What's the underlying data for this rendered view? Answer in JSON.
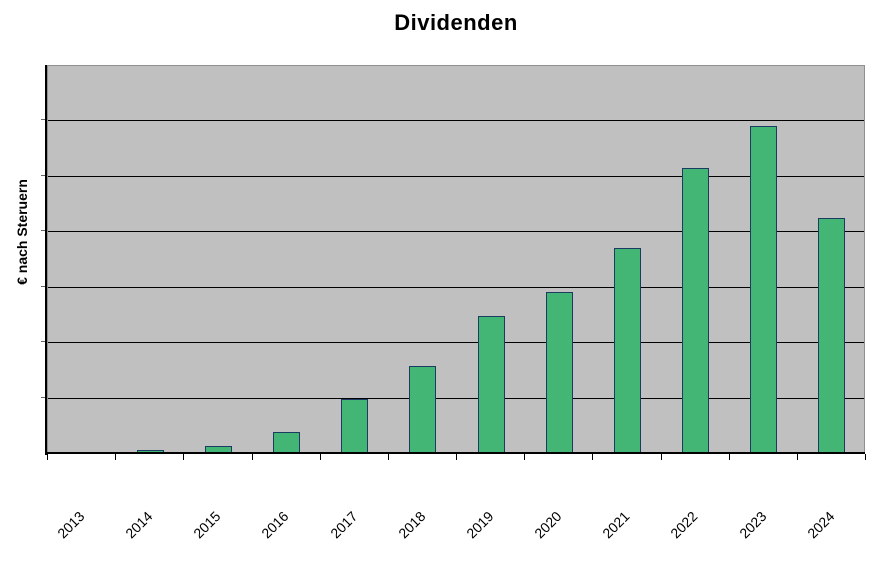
{
  "chart_data": {
    "type": "bar",
    "title": "Dividenden",
    "xlabel": "",
    "ylabel": "€ nach Steruern",
    "categories": [
      "2013",
      "2014",
      "2015",
      "2016",
      "2017",
      "2018",
      "2019",
      "2020",
      "2021",
      "2022",
      "2023",
      "2024"
    ],
    "values": [
      0,
      0.05,
      0.13,
      0.38,
      0.97,
      1.57,
      2.47,
      2.9,
      3.7,
      5.14,
      5.9,
      4.24
    ],
    "value_unit_note": "relative gridline units; y axis shows no numeric tick labels",
    "ylim": [
      0,
      7
    ],
    "grid": "horizontal-only",
    "gridline_interval": 1,
    "legend": "none",
    "x_tick_label_rotation_deg": 45,
    "colors": {
      "bar_fill": "#43B676",
      "bar_border": "#1D3A63",
      "plot_background": "#C0C0C0",
      "plot_border": "#909090",
      "gridline": "#000000",
      "axis_line": "#000000",
      "text": "#000000",
      "page_background": "#FFFFFF"
    }
  }
}
